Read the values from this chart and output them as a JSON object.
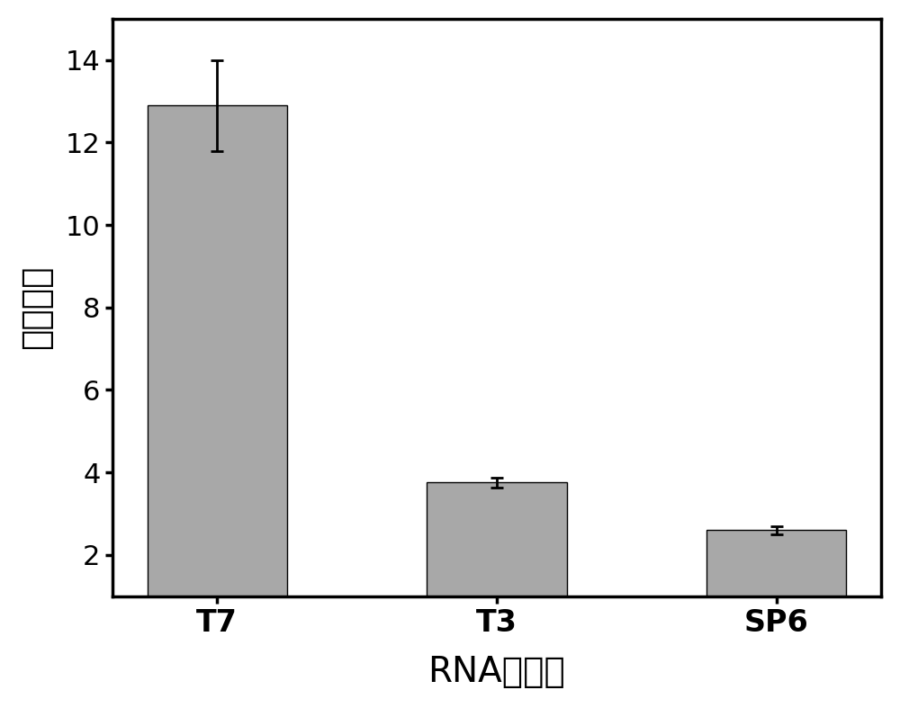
{
  "categories": [
    "T7",
    "T3",
    "SP6"
  ],
  "values": [
    12.9,
    3.75,
    2.6
  ],
  "errors": [
    1.1,
    0.12,
    0.1
  ],
  "bar_color": "#a8a8a8",
  "bar_edge_color": "#000000",
  "error_color": "#000000",
  "ylabel": "相对速率",
  "xlabel": "RNA聚合酶",
  "ylim": [
    1,
    15
  ],
  "yticks": [
    2,
    4,
    6,
    8,
    10,
    12,
    14
  ],
  "bar_width": 0.5,
  "ylabel_fontsize": 28,
  "xlabel_fontsize": 28,
  "tick_fontsize": 22,
  "xtick_fontsize": 24,
  "background_color": "#ffffff",
  "capsize": 5,
  "error_linewidth": 2.0,
  "spine_linewidth": 2.5
}
